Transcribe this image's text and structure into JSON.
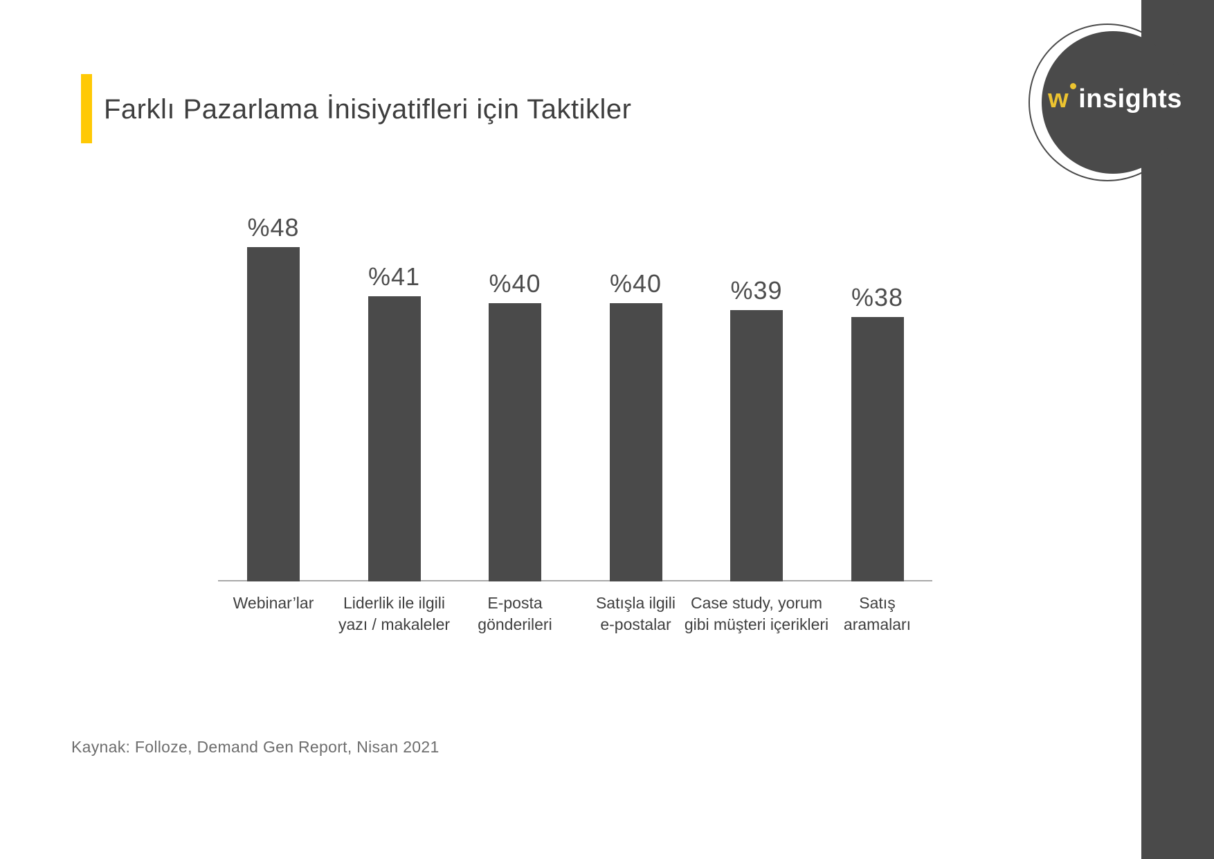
{
  "page": {
    "background": "#ffffff",
    "accent_yellow": "#FFC905",
    "dark_gray": "#4A4A4A"
  },
  "header": {
    "title": "Farklı Pazarlama İnisiyatifleri için Taktikler"
  },
  "logo": {
    "w": "w",
    "rest": "insights",
    "dot_color": "#EDC430",
    "text_color": "#ffffff"
  },
  "chart_data": {
    "type": "bar",
    "title": "Farklı Pazarlama İnisiyatifleri için Taktikler",
    "categories": [
      [
        "Webinar’lar"
      ],
      [
        "Liderlik ile ilgili",
        "yazı / makaleler"
      ],
      [
        "E-posta",
        "gönderileri"
      ],
      [
        "Satışla ilgili",
        "e-postalar"
      ],
      [
        "Case study, yorum",
        "gibi müşteri içerikleri"
      ],
      [
        "Satış",
        "aramaları"
      ]
    ],
    "values": [
      48,
      41,
      40,
      40,
      39,
      38
    ],
    "value_labels": [
      "%48",
      "%41",
      "%40",
      "%40",
      "%39",
      "%38"
    ],
    "bar_color": "#4A4A4A",
    "value_label_color": "#4d4d4d",
    "xlabel": "",
    "ylabel": "",
    "ylim": [
      0,
      48
    ],
    "grid": false,
    "legend": false,
    "baseline_axis": true
  },
  "footer": {
    "source": "Kaynak: Folloze, Demand Gen Report, Nisan 2021"
  }
}
